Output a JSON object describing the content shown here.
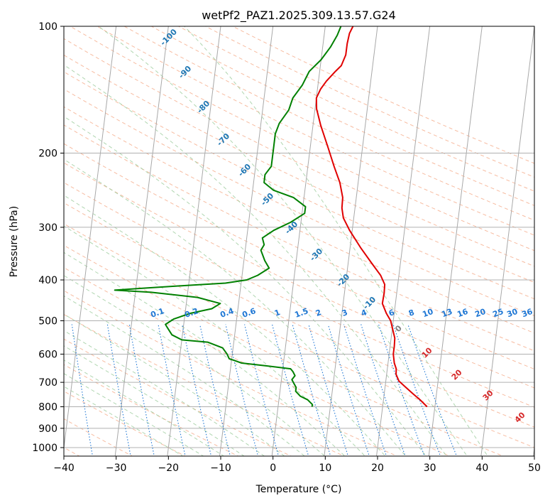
{
  "chart_data": {
    "type": "line",
    "title": "wetPf2_PAZ1.2025.309.13.57.G24",
    "xlabel": "Temperature (°C)",
    "ylabel": "Pressure (hPa)",
    "xlim": [
      -40,
      50
    ],
    "ylim": [
      1050,
      100
    ],
    "y_scale": "log",
    "grid": true,
    "x_ticks": [
      "−40",
      "−30",
      "−20",
      "−10",
      "0",
      "10",
      "20",
      "30",
      "40",
      "50"
    ],
    "x_tick_values": [
      -40,
      -30,
      -20,
      -10,
      0,
      10,
      20,
      30,
      40,
      50
    ],
    "y_ticks": [
      "100",
      "200",
      "300",
      "400",
      "500",
      "600",
      "700",
      "800",
      "900",
      "1000"
    ],
    "y_tick_values": [
      100,
      200,
      300,
      400,
      500,
      600,
      700,
      800,
      900,
      1000
    ],
    "colors": {
      "temperature": "#e00000",
      "dewpoint": "#008000",
      "isotherm": "#a8a8a8",
      "dry_adiabat": "#f4a582",
      "moist_adiabat": "#9ccc9c",
      "mixing_ratio": "#1f77d4",
      "isotherm_label": "#1f77b4",
      "warm_label": "#d62728",
      "zero_label": "#808080"
    },
    "series": [
      {
        "points": [
          [
            28.5,
            800
          ],
          [
            27,
            770
          ],
          [
            25.5,
            745
          ],
          [
            24,
            720
          ],
          [
            22.5,
            695
          ],
          [
            21.8,
            670
          ],
          [
            21.7,
            650
          ],
          [
            21.2,
            630
          ],
          [
            20.8,
            600
          ],
          [
            20.8,
            575
          ],
          [
            20.7,
            550
          ],
          [
            20.0,
            520
          ],
          [
            19.5,
            500
          ],
          [
            18.5,
            480
          ],
          [
            17.5,
            455
          ],
          [
            17.6,
            430
          ],
          [
            17.5,
            410
          ],
          [
            16.5,
            390
          ],
          [
            14.5,
            365
          ],
          [
            12.0,
            335
          ],
          [
            9.5,
            305
          ],
          [
            8.0,
            285
          ],
          [
            7.5,
            270
          ],
          [
            7.4,
            255
          ],
          [
            6.5,
            235
          ],
          [
            5.0,
            215
          ],
          [
            3.5,
            195
          ],
          [
            1.5,
            172
          ],
          [
            0.3,
            157
          ],
          [
            0,
            148
          ],
          [
            0.6,
            141
          ],
          [
            1.5,
            135
          ],
          [
            3.0,
            128
          ],
          [
            4.0,
            124
          ],
          [
            4.6,
            117
          ],
          [
            4.6,
            110
          ],
          [
            4.8,
            104
          ],
          [
            5.3,
            100
          ]
        ]
      },
      {
        "points": [
          [
            6.5,
            800
          ],
          [
            6.5,
            790
          ],
          [
            5.5,
            770
          ],
          [
            4.0,
            755
          ],
          [
            3.0,
            735
          ],
          [
            3.0,
            720
          ],
          [
            2.5,
            705
          ],
          [
            2.0,
            690
          ],
          [
            2.5,
            675
          ],
          [
            2.0,
            660
          ],
          [
            1.5,
            650
          ],
          [
            -3,
            640
          ],
          [
            -8,
            630
          ],
          [
            -10.5,
            615
          ],
          [
            -11,
            600
          ],
          [
            -12,
            580
          ],
          [
            -15,
            562
          ],
          [
            -20,
            555
          ],
          [
            -22,
            540
          ],
          [
            -23,
            520
          ],
          [
            -23.5,
            510
          ],
          [
            -22,
            495
          ],
          [
            -19,
            480
          ],
          [
            -15,
            468
          ],
          [
            -13.5,
            455
          ],
          [
            -18,
            440
          ],
          [
            -27,
            428
          ],
          [
            -34,
            423
          ],
          [
            -28,
            418
          ],
          [
            -20,
            412
          ],
          [
            -13,
            407
          ],
          [
            -9,
            400
          ],
          [
            -7,
            390
          ],
          [
            -5,
            375
          ],
          [
            -6,
            360
          ],
          [
            -6.5,
            350
          ],
          [
            -7,
            340
          ],
          [
            -6.5,
            330
          ],
          [
            -7,
            318
          ],
          [
            -5,
            305
          ],
          [
            -2,
            292
          ],
          [
            0.5,
            278
          ],
          [
            0.5,
            268
          ],
          [
            -2,
            255
          ],
          [
            -6,
            245
          ],
          [
            -8,
            235
          ],
          [
            -8,
            225
          ],
          [
            -7,
            215
          ],
          [
            -7,
            205
          ],
          [
            -7,
            192
          ],
          [
            -7,
            180
          ],
          [
            -6.5,
            170
          ],
          [
            -5,
            158
          ],
          [
            -4.5,
            148
          ],
          [
            -3,
            138
          ],
          [
            -2,
            128
          ],
          [
            0,
            120
          ],
          [
            1.5,
            112
          ],
          [
            2.5,
            105
          ],
          [
            3.0,
            100
          ]
        ]
      }
    ],
    "isotherm_labels": [
      "-100",
      "-90",
      "-80",
      "-70",
      "-60",
      "-50",
      "-40",
      "-30",
      "-20",
      "-10",
      "0",
      "10",
      "20",
      "30",
      "40"
    ],
    "mixing_ratio_labels": [
      "0.1",
      "0.2",
      "0.4",
      "0.6",
      "1",
      "1.5",
      "2",
      "3",
      "4",
      "6",
      "8",
      "10",
      "13",
      "16",
      "20",
      "25",
      "30",
      "36"
    ]
  }
}
